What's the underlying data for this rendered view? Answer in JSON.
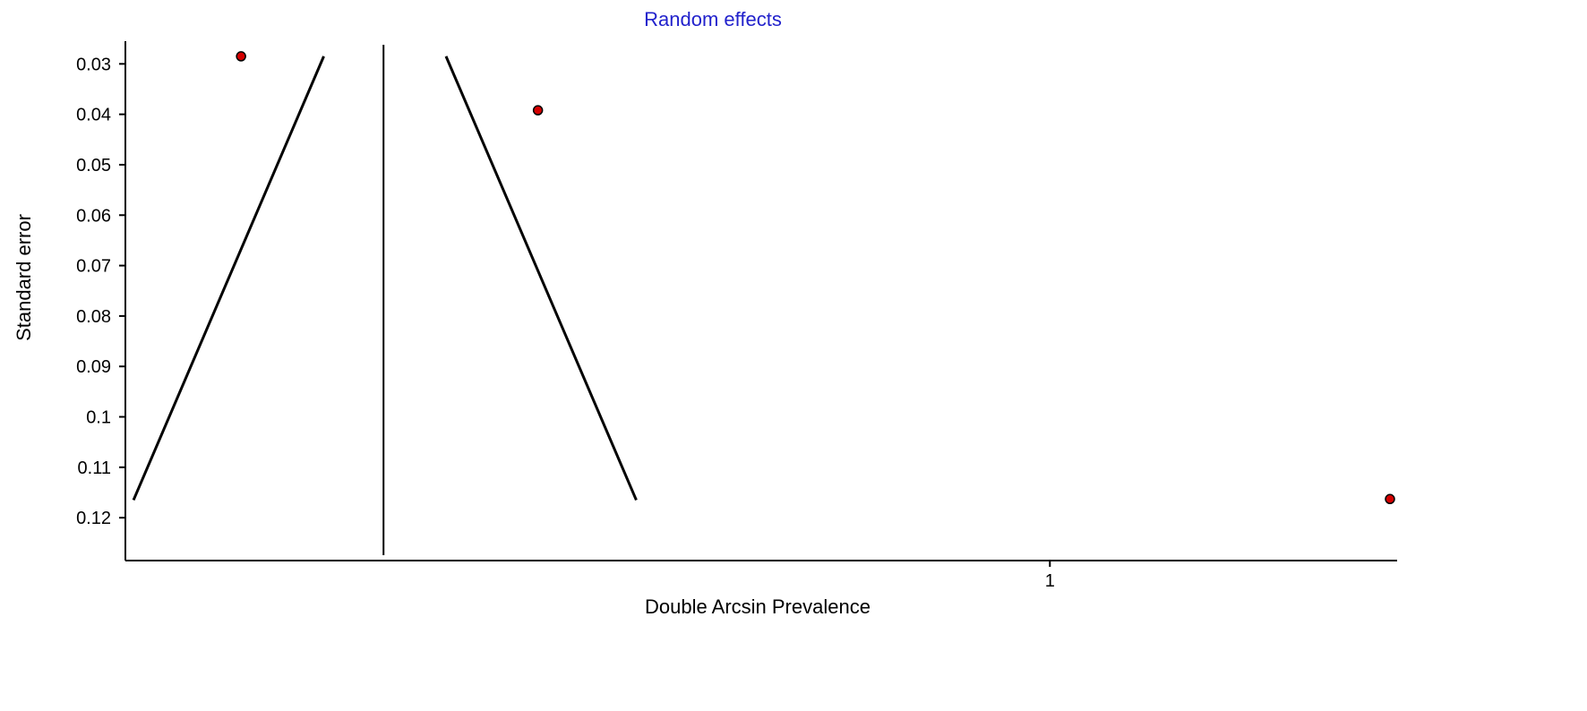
{
  "chart_data": {
    "type": "scatter",
    "title": "Random effects",
    "xlabel": "Double Arcsin Prevalence",
    "ylabel": "Standard error",
    "x_ticks": [
      1
    ],
    "x_tick_labels": [
      "1"
    ],
    "y_ticks": [
      0.03,
      0.04,
      0.05,
      0.06,
      0.07,
      0.08,
      0.09,
      0.1,
      0.11,
      0.12
    ],
    "y_tick_labels": [
      "0.03",
      "0.04",
      "0.05",
      "0.06",
      "0.07",
      "0.08",
      "0.09",
      "0.1",
      "0.11",
      "0.12"
    ],
    "xlim": [
      0,
      1.37
    ],
    "ylim": [
      0.0255,
      0.1285
    ],
    "y_inverted": true,
    "grid": false,
    "pooled_effect": 0.275,
    "funnel_left": [
      [
        0.003,
        0.1165
      ],
      [
        0.21,
        0.0285
      ]
    ],
    "funnel_right": [
      [
        0.343,
        0.0285
      ],
      [
        0.55,
        0.1165
      ]
    ],
    "points": [
      {
        "x": 0.12,
        "y": 0.0285
      },
      {
        "x": 0.443,
        "y": 0.0392
      },
      {
        "x": 1.37,
        "y": 0.1163
      }
    ],
    "point_color": "#d40000",
    "title_color": "#2222cc"
  }
}
